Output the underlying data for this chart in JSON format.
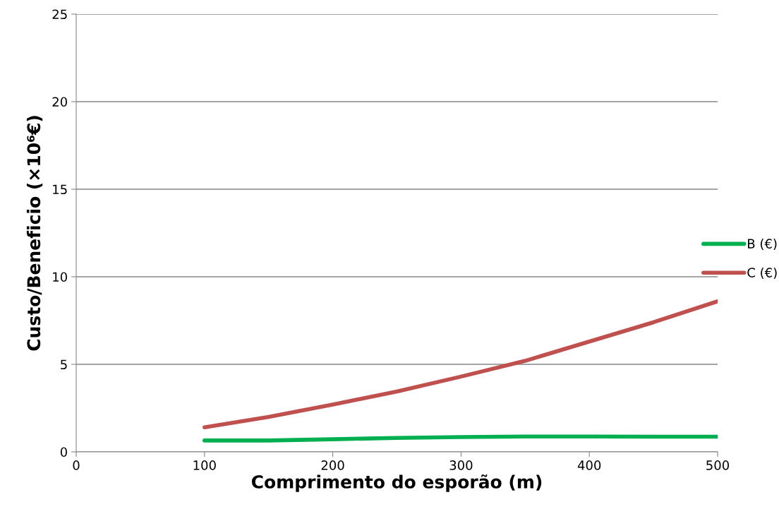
{
  "chart_data": {
    "type": "line",
    "xlabel": "Comprimento do esporão (m)",
    "ylabel": "Custo/Beneficio (×10⁶€)",
    "x": [
      100,
      150,
      200,
      250,
      300,
      350,
      400,
      450,
      500
    ],
    "series": [
      {
        "name": "B (€)",
        "color": "#00b050",
        "values": [
          0.65,
          0.65,
          0.72,
          0.8,
          0.85,
          0.88,
          0.88,
          0.87,
          0.87
        ]
      },
      {
        "name": "C (€)",
        "color": "#c0504d",
        "values": [
          1.4,
          2.0,
          2.7,
          3.45,
          4.3,
          5.2,
          6.3,
          7.4,
          8.6
        ]
      }
    ],
    "xlim": [
      0,
      500
    ],
    "xticks": [
      0,
      100,
      200,
      300,
      400,
      500
    ],
    "ylim": [
      0,
      25
    ],
    "yticks": [
      0,
      5,
      10,
      15,
      20,
      25
    ],
    "grid": "y",
    "legend": "right",
    "marker": "none",
    "line_style": "solid"
  }
}
